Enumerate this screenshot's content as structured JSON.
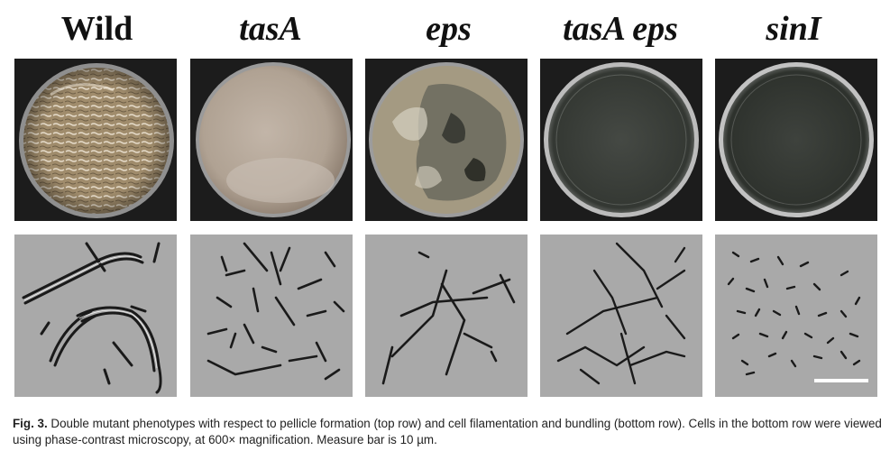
{
  "columns": [
    {
      "title": "Wild",
      "italic": false
    },
    {
      "title": "tasA",
      "italic": true
    },
    {
      "title": "eps",
      "italic": true
    },
    {
      "title": "tasA eps",
      "italic": true
    },
    {
      "title": "sinI",
      "italic": true
    }
  ],
  "caption": {
    "label": "Fig. 3.",
    "text": " Double mutant phenotypes with respect to pellicle formation (top row) and cell filamentation and bundling (bottom row). Cells in the bottom row were viewed using phase-contrast microscopy, at 600× magnification. Measure bar is 10 µm."
  },
  "colors": {
    "plate_background": "#1c1c1c",
    "wild_pellicle": "#a08c6c",
    "tasA_pellicle": "#b7a89a",
    "eps_pellicle": "#8e8a78",
    "empty_plate": "#3a3e3a",
    "micrograph_background": "#a9a9a9",
    "cell_outline": "#1a1a1a",
    "scale_bar": "#ffffff"
  }
}
